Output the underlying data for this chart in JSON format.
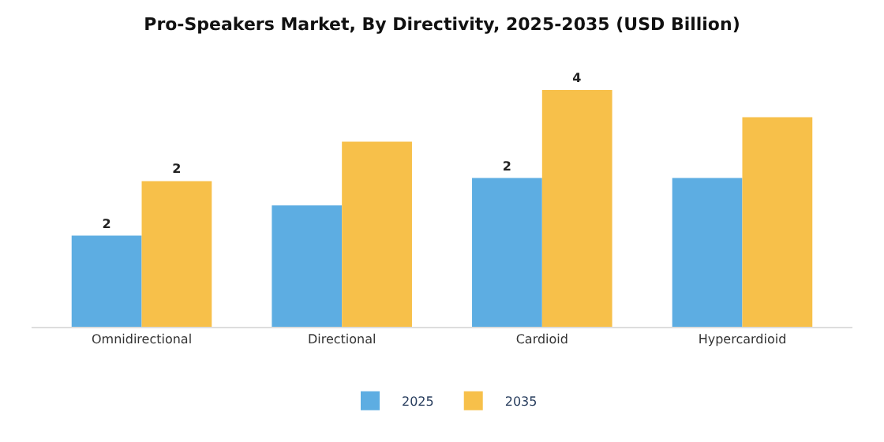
{
  "chart_data": {
    "type": "bar",
    "title": "Pro-Speakers Market, By Directivity, 2025-2035 (USD Billion)",
    "categories": [
      "Omnidirectional",
      "Directional",
      "Cardioid",
      "Hypercardioid"
    ],
    "series": [
      {
        "name": "2025",
        "color": "#5dade2",
        "values": [
          1.5,
          2.0,
          2.45,
          2.45
        ],
        "value_labels": [
          "2",
          null,
          "2",
          null
        ]
      },
      {
        "name": "2035",
        "color": "#f7c04a",
        "values": [
          2.4,
          3.05,
          3.9,
          3.45
        ],
        "value_labels": [
          "2",
          null,
          "4",
          null
        ]
      }
    ],
    "legend": "bottom"
  }
}
